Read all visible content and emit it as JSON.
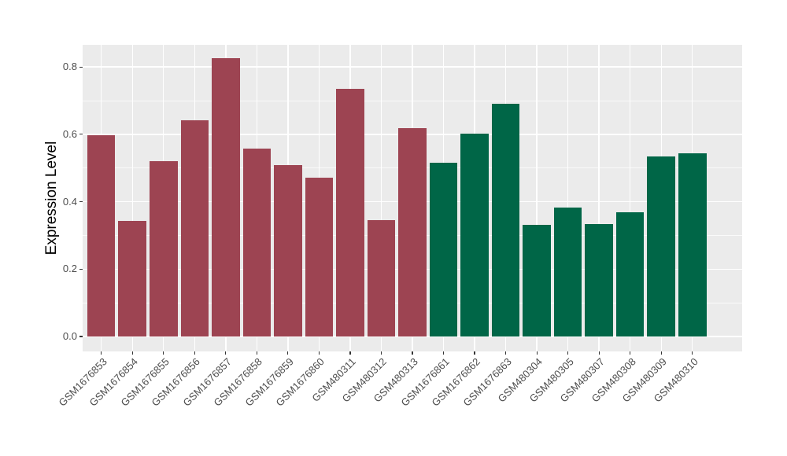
{
  "chart_data": {
    "type": "bar",
    "title": "",
    "xlabel": "",
    "ylabel": "Expression Level",
    "categories": [
      "GSM1676853",
      "GSM1676854",
      "GSM1676855",
      "GSM1676856",
      "GSM1676857",
      "GSM1676858",
      "GSM1676859",
      "GSM1676860",
      "GSM480311",
      "GSM480312",
      "GSM480313",
      "GSM1676861",
      "GSM1676862",
      "GSM1676863",
      "GSM480304",
      "GSM480305",
      "GSM480307",
      "GSM480308",
      "GSM480309",
      "GSM480310"
    ],
    "values": [
      0.597,
      0.343,
      0.521,
      0.641,
      0.825,
      0.558,
      0.508,
      0.471,
      0.734,
      0.345,
      0.618,
      0.515,
      0.602,
      0.69,
      0.331,
      0.383,
      0.334,
      0.368,
      0.535,
      0.543
    ],
    "groups": [
      "group1",
      "group1",
      "group1",
      "group1",
      "group1",
      "group1",
      "group1",
      "group1",
      "group1",
      "group1",
      "group1",
      "group2",
      "group2",
      "group2",
      "group2",
      "group2",
      "group2",
      "group2",
      "group2",
      "group2"
    ],
    "group_colors": {
      "group1": "#9D4452",
      "group2": "#006647"
    },
    "ylim": [
      -0.041,
      0.866
    ],
    "y_major_ticks": [
      0.0,
      0.2,
      0.4,
      0.6,
      0.8
    ],
    "y_tick_labels": [
      "0.0",
      "0.2",
      "0.4",
      "0.6",
      "0.8"
    ],
    "y_minor_ticks": [
      0.1,
      0.3,
      0.5,
      0.7
    ],
    "grid": true,
    "legend_position": "none",
    "panel_background": "#EBEBEB",
    "grid_color": "#FFFFFF",
    "bar_width_fraction": 0.9,
    "x_label_angle_degrees": 45
  }
}
